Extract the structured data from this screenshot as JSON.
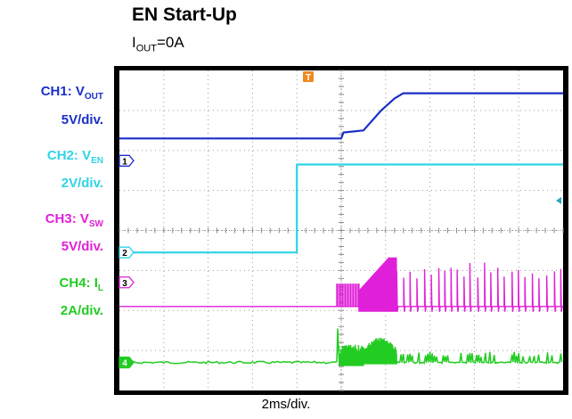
{
  "title": "EN Start-Up",
  "subtitle": {
    "main": "I",
    "sub": "OUT",
    "rest": "=0A"
  },
  "xlabel": "2ms/div.",
  "trigger_marker": "T",
  "channels": [
    {
      "id": "ch1",
      "name_prefix": "CH1: V",
      "name_sub": "OUT",
      "scale": "5V/div.",
      "marker": "1",
      "color": "#1a2fc9"
    },
    {
      "id": "ch2",
      "name_prefix": "CH2: V",
      "name_sub": "EN",
      "scale": "2V/div.",
      "marker": "2",
      "color": "#2fd3e6"
    },
    {
      "id": "ch3",
      "name_prefix": "CH3: V",
      "name_sub": "SW",
      "scale": "5V/div.",
      "marker": "3",
      "color": "#e020d8"
    },
    {
      "id": "ch4",
      "name_prefix": "CH4: I",
      "name_sub": "L",
      "scale": "2A/div.",
      "marker": "4",
      "color": "#22cc22"
    }
  ],
  "chart_data": {
    "type": "line",
    "x_divisions": 10,
    "y_divisions": 8,
    "x_unit_per_div": "2ms",
    "grid": true,
    "series": [
      {
        "name": "CH1: VOUT",
        "x": [
          0,
          5.0,
          5.05,
          5.5,
          5.9,
          6.2,
          6.4,
          6.6,
          10
        ],
        "y": [
          6.3,
          6.3,
          6.45,
          6.5,
          7.0,
          7.3,
          7.43,
          7.43,
          7.43
        ]
      },
      {
        "name": "CH2: VEN",
        "x": [
          0,
          4.0,
          4.0,
          10
        ],
        "y": [
          3.45,
          3.45,
          5.65,
          5.65
        ]
      },
      {
        "name": "CH3: VSW",
        "x": [
          0,
          4.9,
          10
        ],
        "y": [
          2.1,
          2.1,
          2.1
        ]
      },
      {
        "name": "CH4: IL",
        "x": [
          0,
          4.9,
          10
        ],
        "y": [
          0.7,
          0.7,
          0.7
        ]
      }
    ]
  }
}
